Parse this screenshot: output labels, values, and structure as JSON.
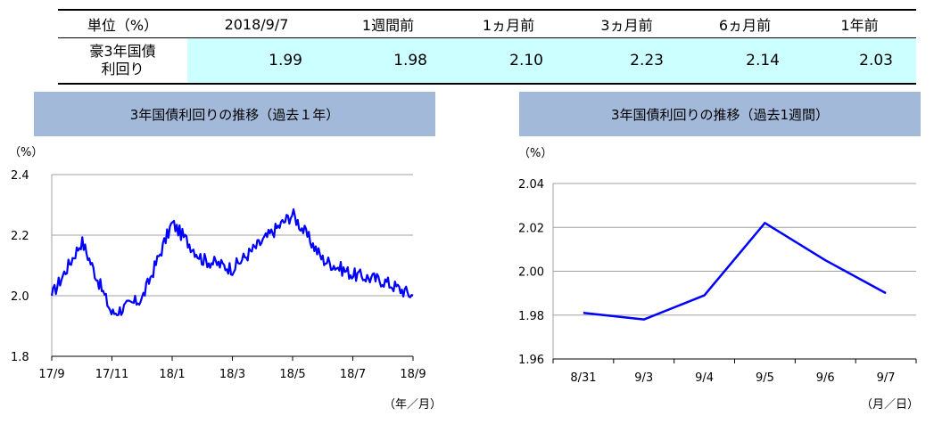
{
  "table": {
    "unit_label": "単位（%）",
    "columns": [
      "2018/9/7",
      "1週間前",
      "1ヵ月前",
      "3ヵ月前",
      "6ヵ月前",
      "1年前"
    ],
    "row_label_line1": "豪3年国債",
    "row_label_line2": "利回り",
    "values": [
      "1.99",
      "1.98",
      "2.10",
      "2.23",
      "2.14",
      "2.03"
    ]
  },
  "chart_data": [
    {
      "type": "line",
      "title": "3年国債利回りの推移（過去１年）",
      "ylabel": "（%）",
      "xlabel": "（年／月）",
      "ylim": [
        1.8,
        2.4
      ],
      "yticks": [
        "2.4",
        "2.2",
        "2.0",
        "1.8"
      ],
      "xticks": [
        "17/9",
        "17/11",
        "18/1",
        "18/3",
        "18/5",
        "18/7",
        "18/9"
      ],
      "color": "#0000ff",
      "series": [
        {
          "x": [
            "17/9 (start)",
            "17/10",
            "17/11",
            "17/12",
            "18/1",
            "18/2",
            "18/3",
            "18/4",
            "18/5",
            "18/6",
            "18/7",
            "18/8",
            "18/9 (end)"
          ],
          "values": [
            2.0,
            2.18,
            1.94,
            1.99,
            2.24,
            2.12,
            2.09,
            2.18,
            2.27,
            2.12,
            2.07,
            2.05,
            2.0
          ]
        }
      ]
    },
    {
      "type": "line",
      "title": "3年国債利回りの推移（過去1週間）",
      "ylabel": "（%）",
      "xlabel": "（月／日）",
      "ylim": [
        1.96,
        2.04
      ],
      "yticks": [
        "2.04",
        "2.02",
        "2.00",
        "1.98",
        "1.96"
      ],
      "categories": [
        "8/31",
        "9/3",
        "9/4",
        "9/5",
        "9/6",
        "9/7"
      ],
      "color": "#0000ff",
      "series": [
        {
          "values": [
            1.981,
            1.978,
            1.989,
            2.022,
            2.005,
            1.99
          ]
        }
      ]
    }
  ]
}
